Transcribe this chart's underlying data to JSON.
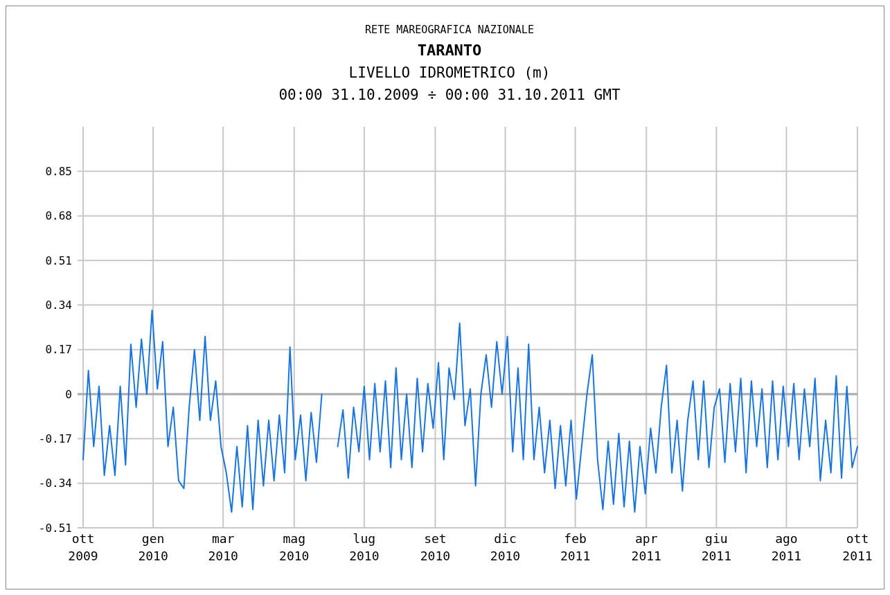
{
  "chart_data": {
    "type": "line",
    "title": "TARANTO",
    "subtitle": "LIVELLO IDROMETRICO (m)",
    "annotations": [
      "RETE MAREOGRAFICA NAZIONALE",
      "00:00 31.10.2009 ÷ 00:00 31.10.2011 GMT"
    ],
    "x": [
      "2009-10-31",
      "2009-11-05",
      "2009-11-10",
      "2009-11-15",
      "2009-11-20",
      "2009-11-25",
      "2009-11-30",
      "2009-12-05",
      "2009-12-10",
      "2009-12-15",
      "2009-12-20",
      "2009-12-25",
      "2009-12-30",
      "2010-01-04",
      "2010-01-09",
      "2010-01-14",
      "2010-01-19",
      "2010-01-24",
      "2010-01-29",
      "2010-02-03",
      "2010-02-08",
      "2010-02-13",
      "2010-02-18",
      "2010-02-23",
      "2010-02-28",
      "2010-03-05",
      "2010-03-10",
      "2010-03-15",
      "2010-03-20",
      "2010-03-25",
      "2010-03-30",
      "2010-04-04",
      "2010-04-09",
      "2010-04-14",
      "2010-04-19",
      "2010-04-24",
      "2010-04-29",
      "2010-05-04",
      "2010-05-09",
      "2010-05-14",
      "2010-05-19",
      "2010-05-24",
      "2010-05-29",
      "2010-06-03",
      "2010-06-08",
      "2010-06-13",
      "2010-06-18",
      "2010-06-23",
      "2010-06-28",
      "2010-07-03",
      "2010-07-08",
      "2010-07-13",
      "2010-07-18",
      "2010-07-23",
      "2010-07-28",
      "2010-08-02",
      "2010-08-07",
      "2010-08-12",
      "2010-08-17",
      "2010-08-22",
      "2010-08-27",
      "2010-09-01",
      "2010-09-06",
      "2010-09-11",
      "2010-09-16",
      "2010-09-21",
      "2010-09-26",
      "2010-10-01",
      "2010-10-06",
      "2010-10-11",
      "2010-10-16",
      "2010-10-21",
      "2010-10-26",
      "2010-10-31",
      "2010-11-05",
      "2010-11-10",
      "2010-11-15",
      "2010-11-20",
      "2010-11-25",
      "2010-11-30",
      "2010-12-05",
      "2010-12-10",
      "2010-12-15",
      "2010-12-20",
      "2010-12-25",
      "2010-12-30",
      "2011-01-04",
      "2011-01-09",
      "2011-01-14",
      "2011-01-19",
      "2011-01-24",
      "2011-01-29",
      "2011-02-03",
      "2011-02-08",
      "2011-02-13",
      "2011-02-18",
      "2011-02-23",
      "2011-02-28",
      "2011-03-05",
      "2011-03-10",
      "2011-03-15",
      "2011-03-20",
      "2011-03-25",
      "2011-03-30",
      "2011-04-04",
      "2011-04-09",
      "2011-04-14",
      "2011-04-19",
      "2011-04-24",
      "2011-04-29",
      "2011-05-04",
      "2011-05-09",
      "2011-05-14",
      "2011-05-19",
      "2011-05-24",
      "2011-05-29",
      "2011-06-03",
      "2011-06-08",
      "2011-06-13",
      "2011-06-18",
      "2011-06-23",
      "2011-06-28",
      "2011-07-03",
      "2011-07-08",
      "2011-07-13",
      "2011-07-18",
      "2011-07-23",
      "2011-07-28",
      "2011-08-02",
      "2011-08-07",
      "2011-08-12",
      "2011-08-17",
      "2011-08-22",
      "2011-08-27",
      "2011-09-01",
      "2011-09-06",
      "2011-09-11",
      "2011-09-16",
      "2011-09-21",
      "2011-09-26",
      "2011-10-01",
      "2011-10-06",
      "2011-10-11",
      "2011-10-16",
      "2011-10-21",
      "2011-10-26",
      "2011-10-31"
    ],
    "series": [
      {
        "color": "#1874e0",
        "values": [
          -0.25,
          0.09,
          -0.2,
          0.03,
          -0.31,
          -0.12,
          -0.31,
          0.03,
          -0.27,
          0.19,
          -0.05,
          0.21,
          0.0,
          0.32,
          0.02,
          0.2,
          -0.2,
          -0.05,
          -0.33,
          -0.36,
          -0.05,
          0.17,
          -0.1,
          0.22,
          -0.1,
          0.05,
          -0.2,
          -0.3,
          -0.45,
          -0.2,
          -0.43,
          -0.12,
          -0.44,
          -0.1,
          -0.35,
          -0.1,
          -0.33,
          -0.08,
          -0.3,
          0.18,
          -0.25,
          -0.08,
          -0.33,
          -0.07,
          -0.26,
          0.0,
          null,
          null,
          -0.2,
          -0.06,
          -0.32,
          -0.05,
          -0.22,
          0.03,
          -0.25,
          0.04,
          -0.22,
          0.05,
          -0.28,
          0.1,
          -0.25,
          0.0,
          -0.28,
          0.06,
          -0.22,
          0.04,
          -0.13,
          0.12,
          -0.25,
          0.1,
          -0.02,
          0.27,
          -0.12,
          0.02,
          -0.35,
          0.0,
          0.15,
          -0.05,
          0.2,
          0.0,
          0.22,
          -0.22,
          0.1,
          -0.25,
          0.19,
          -0.25,
          -0.05,
          -0.3,
          -0.1,
          -0.36,
          -0.12,
          -0.35,
          -0.1,
          -0.4,
          -0.2,
          0.0,
          0.15,
          -0.25,
          -0.44,
          -0.18,
          -0.42,
          -0.15,
          -0.43,
          -0.18,
          -0.45,
          -0.2,
          -0.38,
          -0.13,
          -0.3,
          -0.05,
          0.11,
          -0.3,
          -0.1,
          -0.37,
          -0.1,
          0.05,
          -0.25,
          0.05,
          -0.28,
          -0.05,
          0.02,
          -0.26,
          0.04,
          -0.22,
          0.06,
          -0.3,
          0.05,
          -0.2,
          0.02,
          -0.28,
          0.05,
          -0.25,
          0.03,
          -0.2,
          0.04,
          -0.25,
          0.02,
          -0.2,
          0.06,
          -0.33,
          -0.1,
          -0.3,
          0.07,
          -0.32,
          0.03,
          -0.28,
          -0.2
        ]
      }
    ],
    "xlim": [
      "2009-10-31",
      "2011-10-31"
    ],
    "xticks": [
      {
        "value": "2009-10-31",
        "label": "ott\n2009"
      },
      {
        "value": "2010-01-05",
        "label": "gen\n2010"
      },
      {
        "value": "2010-03-12",
        "label": "mar\n2010"
      },
      {
        "value": "2010-05-18",
        "label": "mag\n2010"
      },
      {
        "value": "2010-07-23",
        "label": "lug\n2010"
      },
      {
        "value": "2010-09-28",
        "label": "set\n2010"
      },
      {
        "value": "2010-12-03",
        "label": "dic\n2010"
      },
      {
        "value": "2011-02-07",
        "label": "feb\n2011"
      },
      {
        "value": "2011-04-15",
        "label": "apr\n2011"
      },
      {
        "value": "2011-06-20",
        "label": "giu\n2011"
      },
      {
        "value": "2011-08-25",
        "label": "ago\n2011"
      },
      {
        "value": "2011-10-31",
        "label": "ott\n2011"
      }
    ],
    "ylim": [
      -0.51,
      1.02
    ],
    "yticks": [
      -0.51,
      -0.34,
      -0.17,
      {
        "value": 0,
        "label": "0"
      },
      0.17,
      0.34,
      0.51,
      0.68,
      0.85
    ],
    "ref_lines": [
      {
        "axis": "y",
        "value": 0,
        "color": "#a8a8a8"
      }
    ],
    "grid": true,
    "marker": "none",
    "line_style": "solid"
  }
}
